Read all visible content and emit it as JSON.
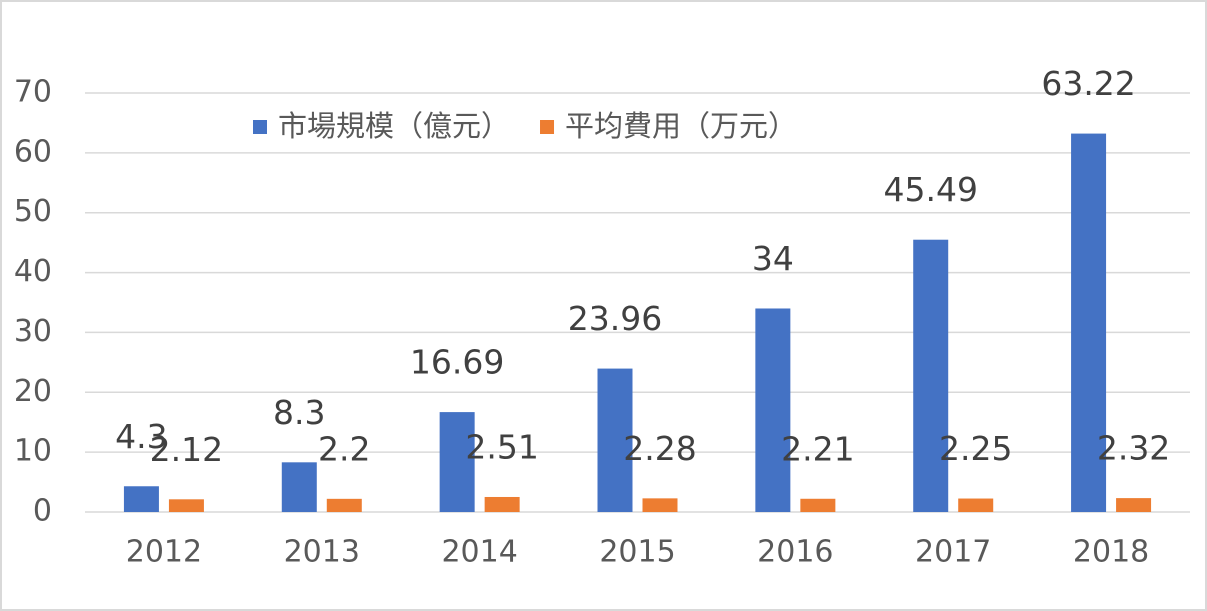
{
  "chart_data": {
    "type": "bar",
    "categories": [
      "2012",
      "2013",
      "2014",
      "2015",
      "2016",
      "2017",
      "2018"
    ],
    "series": [
      {
        "name": "市場規模（億元）",
        "color": "#4472c4",
        "values": [
          4.3,
          8.3,
          16.69,
          23.96,
          34,
          45.49,
          63.22
        ]
      },
      {
        "name": "平均費用（万元）",
        "color": "#ed7d31",
        "values": [
          2.12,
          2.2,
          2.51,
          2.28,
          2.21,
          2.25,
          2.32
        ]
      }
    ],
    "ylim": [
      0,
      70
    ],
    "yticks": [
      0,
      10,
      20,
      30,
      40,
      50,
      60,
      70
    ],
    "grid": true,
    "legend": "top"
  }
}
